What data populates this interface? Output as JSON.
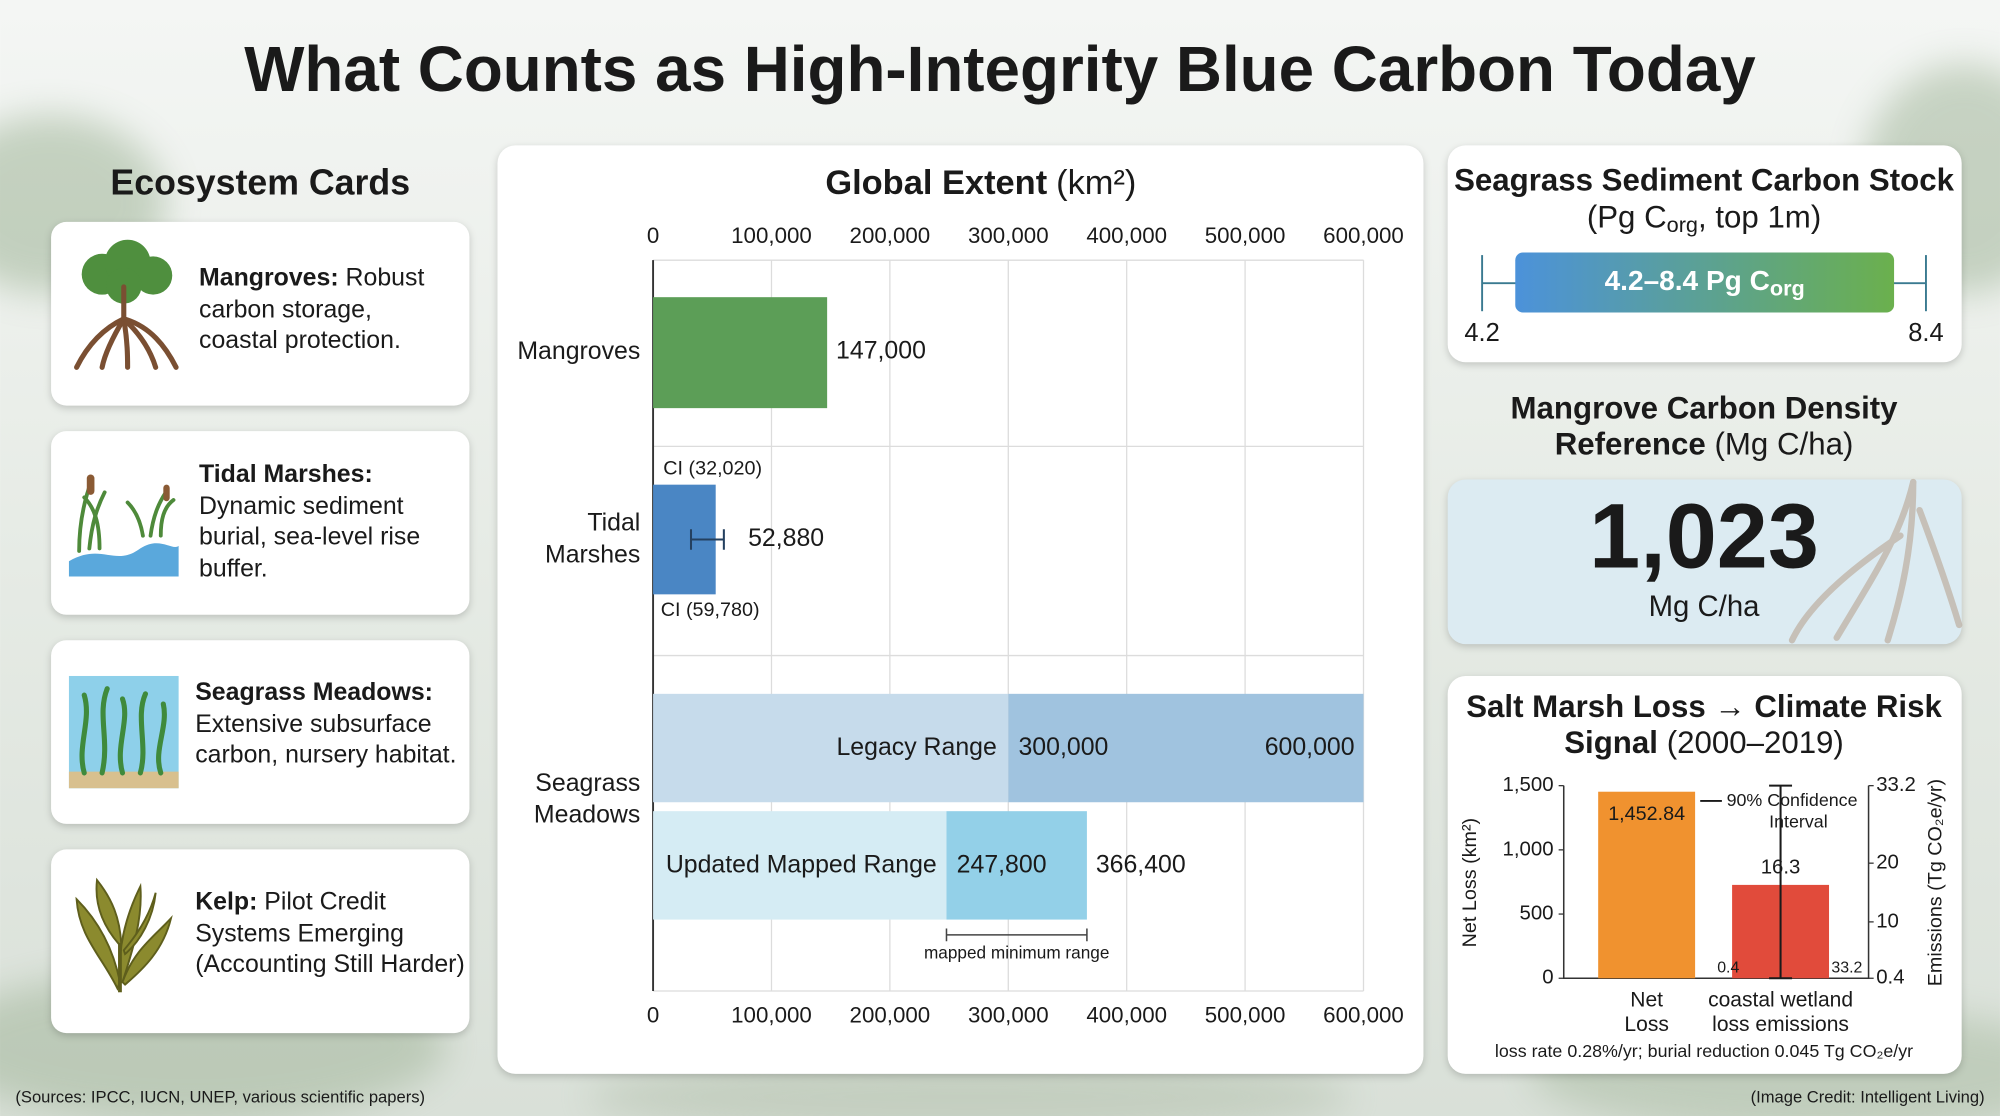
{
  "title": "What Counts as High-Integrity Blue Carbon Today",
  "cards_heading": "Ecosystem Cards",
  "cards": [
    {
      "name": "Mangroves:",
      "text": "Robust carbon storage, coastal protection."
    },
    {
      "name": "Tidal Marshes:",
      "text": "Dynamic sediment burial, sea-level rise buffer."
    },
    {
      "name": "Seagrass Meadows:",
      "text": "Extensive subsurface carbon, nursery habitat."
    },
    {
      "name": "Kelp:",
      "text": "Pilot Credit Systems Emerging (Accounting Still Harder)"
    }
  ],
  "chart_data": [
    {
      "type": "hbar",
      "title": "Global Extent",
      "unit": "(km²)",
      "xlim": [
        0,
        600000
      ],
      "xticks": [
        0,
        {
          "value": 100000,
          "label": "100,000"
        },
        {
          "value": 200000,
          "label": "200,000"
        },
        {
          "value": 300000,
          "label": "300,000"
        },
        {
          "value": 400000,
          "label": "400,000"
        },
        {
          "value": 500000,
          "label": "500,000"
        },
        {
          "value": 600000,
          "label": "600,000"
        }
      ],
      "grid": true,
      "bars": [
        {
          "category": "Mangroves",
          "value": 147000,
          "value_label": "147,000",
          "color": "#5c9e57"
        },
        {
          "category": "Tidal Marshes",
          "value": 52880,
          "value_label": "52,880",
          "color": "#4a86c4",
          "ci": [
            32020,
            59780
          ],
          "ci_labels": [
            "CI (32,020)",
            "CI (59,780)"
          ]
        },
        {
          "category": "Seagrass Meadows",
          "ranges": [
            {
              "name": "Legacy Range",
              "values": [
                300000,
                600000
              ],
              "value_labels": [
                "300,000",
                "600,000"
              ],
              "colors": [
                "#c6dbeb",
                "#a0c3df"
              ]
            },
            {
              "name": "Updated Mapped Range",
              "values": [
                247800,
                366400
              ],
              "value_labels": [
                "247,800",
                "366,400"
              ],
              "colors": [
                "#d5ecf4",
                "#93d0e8"
              ],
              "annotation": "mapped minimum range"
            }
          ]
        }
      ]
    },
    {
      "type": "range",
      "title": "Seagrass Sediment Carbon Stock",
      "subtitle_parts": [
        "(Pg C",
        "org",
        ", top 1m)"
      ],
      "values": [
        4.2,
        8.4
      ],
      "label_parts": [
        "4.2–8.4 Pg C",
        "org"
      ],
      "xlim": [
        4.2,
        8.4
      ],
      "xticks": [
        4.2,
        8.4
      ],
      "colors": [
        "#4c92da",
        "#6bb04d"
      ]
    },
    {
      "type": "stat",
      "title": "Mangrove Carbon Density Reference",
      "subtitle": "(Mg C/ha)",
      "value": 1023,
      "value_label": "1,023",
      "unit": "Mg C/ha"
    },
    {
      "type": "bar",
      "title": "Salt Marsh Loss → Climate Risk Signal",
      "subtitle": "(2000–2019)",
      "categories": [
        "Net Loss",
        "coastal wetland loss emissions"
      ],
      "values": [
        1452.84,
        16.3
      ],
      "value_labels": [
        "1,452.84",
        "16.3"
      ],
      "axes": [
        "y",
        "y2"
      ],
      "colors": [
        "#f0922f",
        "#e14b3b"
      ],
      "error": [
        0.4,
        33.2
      ],
      "ci_legend": "90% Confidence Interval",
      "ylabel": "Net Loss (km²)",
      "y2label": "Emissions (Tg CO₂e/yr)",
      "ylim": [
        0,
        1500
      ],
      "yticks": [
        0,
        500,
        {
          "value": 1000,
          "label": "1,000"
        },
        {
          "value": 1500,
          "label": "1,500"
        }
      ],
      "y2lim": [
        0.4,
        33.2
      ],
      "y2ticks": [
        0.4,
        10,
        20,
        33.2
      ],
      "note": "loss rate 0.28%/yr; burial reduction 0.045 Tg CO₂e/yr"
    }
  ],
  "sources": "(Sources: IPCC, IUCN, UNEP, various scientific papers)",
  "credit": "(Image Credit: Intelligent Living)"
}
